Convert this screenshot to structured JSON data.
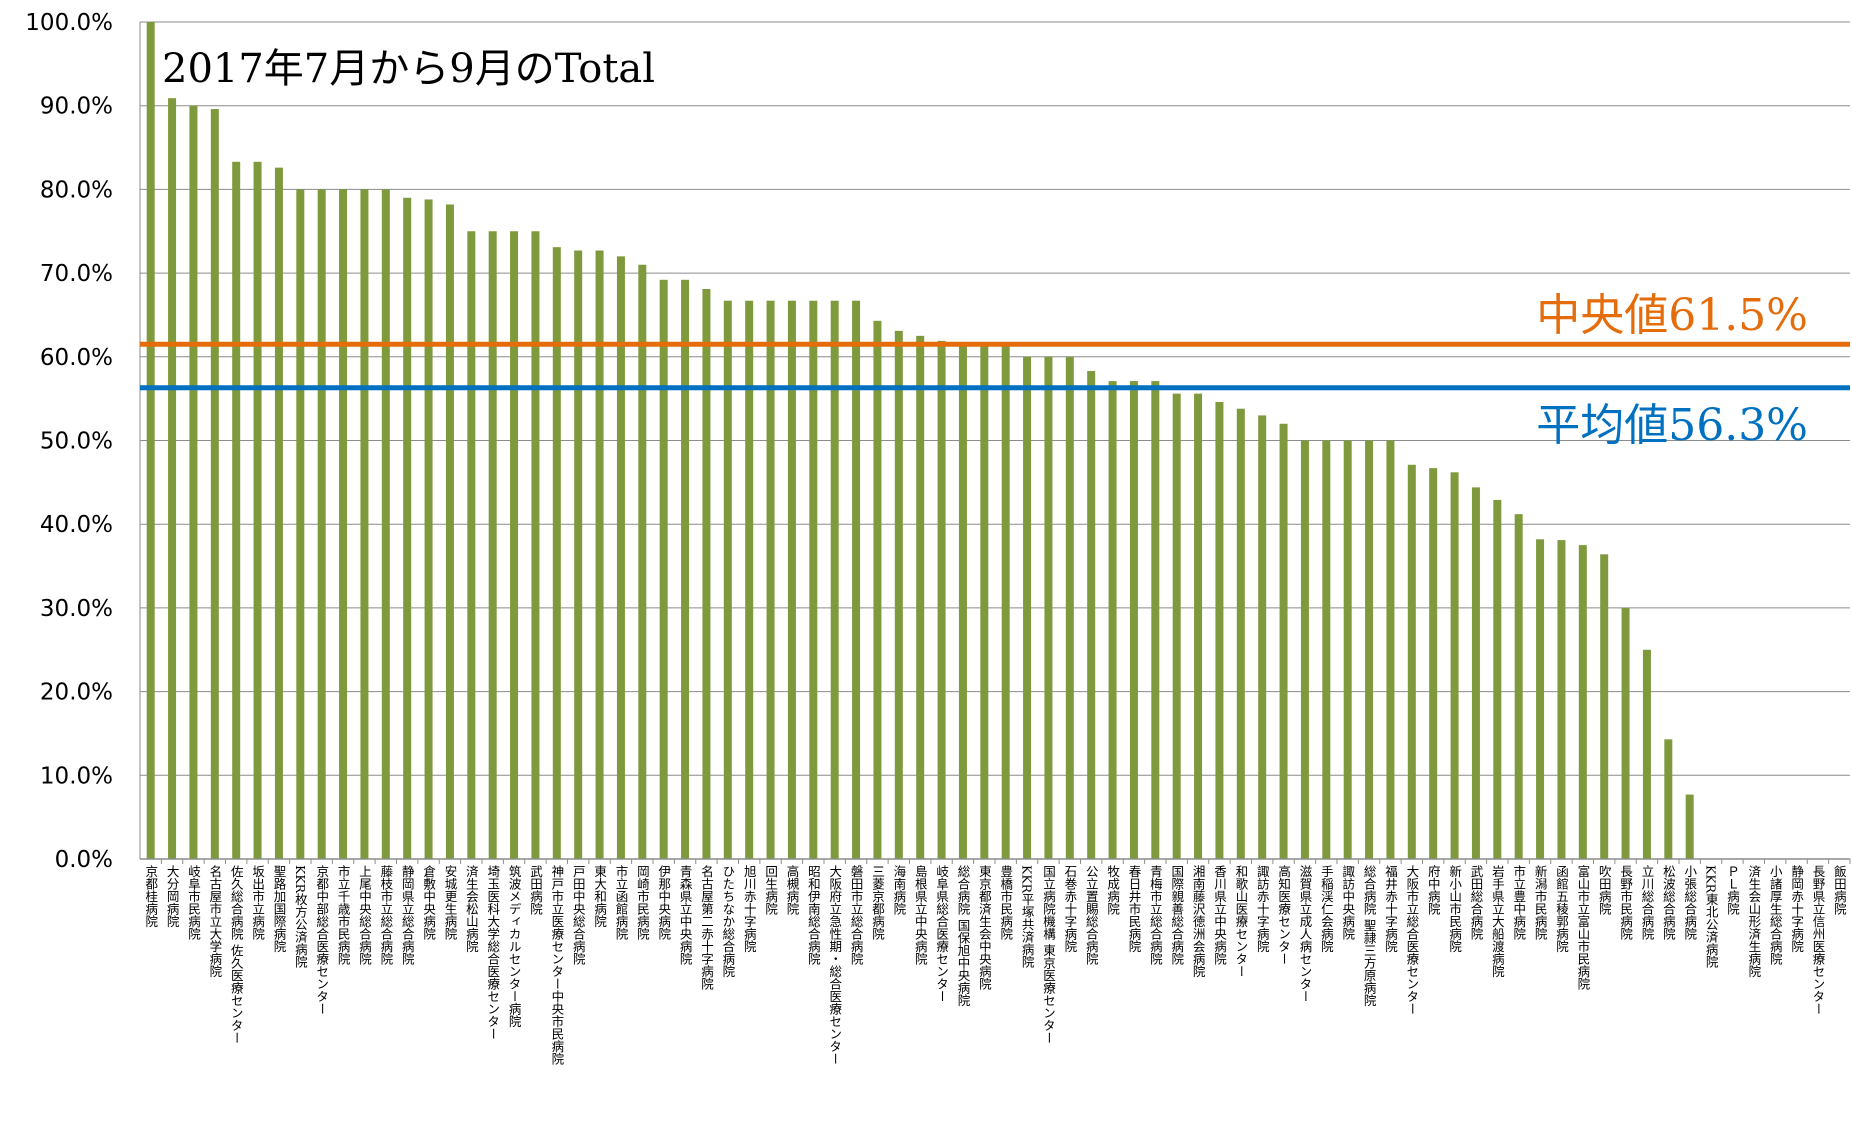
{
  "chart_data": {
    "type": "bar",
    "title": "2017年7月から9月のTotal",
    "xlabel": "",
    "ylabel": "",
    "ylim": [
      0,
      100
    ],
    "yticks": [
      "0.0%",
      "10.0%",
      "20.0%",
      "30.0%",
      "40.0%",
      "50.0%",
      "60.0%",
      "70.0%",
      "80.0%",
      "90.0%",
      "100.0%"
    ],
    "grid": true,
    "legend": "none",
    "bar_color": "#7f9a3c",
    "categories": [
      "京都桂病院",
      "大分岡病院",
      "岐阜市民病院",
      "名古屋市立大学病院",
      "佐久総合病院 佐久医療センター",
      "坂出市立病院",
      "聖路加国際病院",
      "KKR枚方公済病院",
      "京都中部総合医療センター",
      "市立千歳市民病院",
      "上尾中央総合病院",
      "藤枝市立総合病院",
      "静岡県立総合病院",
      "倉敷中央病院",
      "安城更生病院",
      "済生会松山病院",
      "埼玉医科大学総合医療センター",
      "筑波メディカルセンター病院",
      "武田病院",
      "神戸市立医療センター中央市民病院",
      "戸田中央総合病院",
      "東大和病院",
      "市立函館病院",
      "岡崎市民病院",
      "伊那中央病院",
      "青森県立中央病院",
      "名古屋第二赤十字病院",
      "ひたちなか総合病院",
      "旭川赤十字病院",
      "回生病院",
      "高槻病院",
      "昭和伊南総合病院",
      "大阪府立急性期・総合医療センター",
      "磐田市立総合病院",
      "三菱京都病院",
      "海南病院",
      "島根県立中央病院",
      "岐阜県総合医療センター",
      "総合病院 国保旭中央病院",
      "東京都済生会中央病院",
      "豊橋市民病院",
      "KKR平塚共済病院",
      "国立病院機構 東京医療センター",
      "石巻赤十字病院",
      "公立置賜総合病院",
      "牧成病院",
      "春日井市民病院",
      "青梅市立総合病院",
      "国際親善総合病院",
      "湘南藤沢徳洲会病院",
      "香川県立中央病院",
      "和歌山医療センター",
      "諏訪赤十字病院",
      "高知医療センター",
      "滋賀県立成人病センター",
      "手稲渓仁会病院",
      "諏訪中央病院",
      "総合病院 聖隷三方原病院",
      "福井赤十字病院",
      "大阪市立総合医療センター",
      "府中病院",
      "新小山市民病院",
      "武田総合病院",
      "岩手県立大船渡病院",
      "市立豊中病院",
      "新潟市民病院",
      "函館五稜郭病院",
      "富山市立富山市民病院",
      "吹田病院",
      "長野市民病院",
      "立川総合病院",
      "松波総合病院",
      "小張総合病院",
      "KKR東北公済病院",
      "ＰＬ病院",
      "済生会山形済生病院",
      "小諸厚生総合病院",
      "静岡赤十字病院",
      "長野県立信州医療センター",
      "飯田病院"
    ],
    "values": [
      100.0,
      90.9,
      90.0,
      89.6,
      83.3,
      83.3,
      82.6,
      80.0,
      80.0,
      80.0,
      80.0,
      80.0,
      79.0,
      78.8,
      78.2,
      75.0,
      75.0,
      75.0,
      75.0,
      73.1,
      72.7,
      72.7,
      72.0,
      71.0,
      69.2,
      69.2,
      68.1,
      66.7,
      66.7,
      66.7,
      66.7,
      66.7,
      66.7,
      66.7,
      64.3,
      63.1,
      62.5,
      61.9,
      61.5,
      61.5,
      61.5,
      60.0,
      60.0,
      60.0,
      58.3,
      57.1,
      57.1,
      57.1,
      55.6,
      55.6,
      54.6,
      53.8,
      53.0,
      52.0,
      50.0,
      50.0,
      50.0,
      50.0,
      50.0,
      47.1,
      46.7,
      46.2,
      44.4,
      42.9,
      41.2,
      38.2,
      38.1,
      37.5,
      36.4,
      30.0,
      25.0,
      14.3,
      7.7,
      0,
      0,
      0,
      0,
      0,
      0,
      0
    ],
    "reference_lines": [
      {
        "label": "中央値61.5%",
        "value": 61.5,
        "color": "#e46c0a"
      },
      {
        "label": "平均値56.3%",
        "value": 56.3,
        "color": "#0070c0"
      }
    ]
  }
}
